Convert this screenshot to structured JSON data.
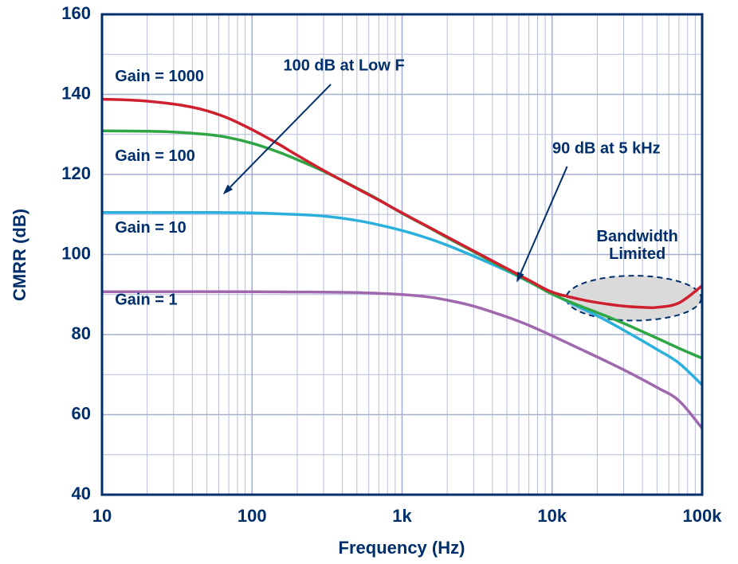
{
  "colors": {
    "navy": "#002f6c",
    "grid_minor": "#b6bdd8",
    "grid_major": "#a7afd0",
    "border": "#002f6c",
    "background": "#ffffff",
    "ellipse_fill": "#dadada",
    "red": "#cf202f",
    "green": "#2fa644",
    "cyan": "#2bb0dd",
    "purple": "#9f68ae"
  },
  "chart_data": {
    "type": "line",
    "title": "",
    "xlabel": "Frequency (Hz)",
    "ylabel": "CMRR (dB)",
    "x_scale": "log",
    "xlim": [
      10,
      100000
    ],
    "ylim": [
      40,
      160
    ],
    "grid": true,
    "x_ticks": [
      {
        "f": 10,
        "label": "10"
      },
      {
        "f": 100,
        "label": "100"
      },
      {
        "f": 1000,
        "label": "1k"
      },
      {
        "f": 10000,
        "label": "10k"
      },
      {
        "f": 100000,
        "label": "100k"
      }
    ],
    "y_ticks": [
      {
        "db": 160,
        "label": "160"
      },
      {
        "db": 140,
        "label": "140"
      },
      {
        "db": 120,
        "label": "120"
      },
      {
        "db": 100,
        "label": "100"
      },
      {
        "db": 80,
        "label": "80"
      },
      {
        "db": 60,
        "label": "60"
      },
      {
        "db": 40,
        "label": "40"
      }
    ],
    "y_grid_step_db": 10,
    "x_minor_multiples": [
      2,
      3,
      4,
      5,
      6,
      7,
      8,
      9
    ],
    "series": [
      {
        "name": "Gain = 1",
        "color_key": "purple",
        "points": [
          [
            10,
            90.7
          ],
          [
            100,
            90.7
          ],
          [
            300,
            90.6
          ],
          [
            500,
            90.5
          ],
          [
            700,
            90.3
          ],
          [
            1000,
            90.0
          ],
          [
            1500,
            89.4
          ],
          [
            2000,
            88.6
          ],
          [
            3000,
            87.1
          ],
          [
            5000,
            84.4
          ],
          [
            7000,
            82.3
          ],
          [
            10000,
            79.7
          ],
          [
            15000,
            76.6
          ],
          [
            20000,
            74.4
          ],
          [
            30000,
            71.2
          ],
          [
            50000,
            66.8
          ],
          [
            70000,
            63.5
          ],
          [
            100000,
            56.6
          ]
        ]
      },
      {
        "name": "Gain = 10",
        "color_key": "cyan",
        "points": [
          [
            10,
            110.5
          ],
          [
            50,
            110.5
          ],
          [
            100,
            110.4
          ],
          [
            200,
            110.0
          ],
          [
            300,
            109.6
          ],
          [
            500,
            108.5
          ],
          [
            700,
            107.4
          ],
          [
            1000,
            106.0
          ],
          [
            1500,
            104.0
          ],
          [
            2000,
            102.3
          ],
          [
            3000,
            99.6
          ],
          [
            5000,
            95.9
          ],
          [
            7000,
            93.2
          ],
          [
            10000,
            90.2
          ],
          [
            15000,
            86.9
          ],
          [
            20000,
            84.7
          ],
          [
            30000,
            81.1
          ],
          [
            50000,
            76.3
          ],
          [
            70000,
            72.9
          ],
          [
            100000,
            67.4
          ]
        ]
      },
      {
        "name": "Gain = 100",
        "color_key": "green",
        "points": [
          [
            10,
            130.9
          ],
          [
            20,
            130.8
          ],
          [
            30,
            130.6
          ],
          [
            50,
            130.0
          ],
          [
            70,
            129.2
          ],
          [
            100,
            127.8
          ],
          [
            150,
            125.6
          ],
          [
            200,
            123.7
          ],
          [
            300,
            120.8
          ],
          [
            500,
            116.6
          ],
          [
            700,
            113.7
          ],
          [
            1000,
            110.3
          ],
          [
            1500,
            106.8
          ],
          [
            2000,
            104.2
          ],
          [
            3000,
            100.7
          ],
          [
            5000,
            96.2
          ],
          [
            7000,
            93.3
          ],
          [
            10000,
            90.1
          ],
          [
            15000,
            87.3
          ],
          [
            20000,
            85.5
          ],
          [
            30000,
            82.8
          ],
          [
            50000,
            79.1
          ],
          [
            70000,
            76.6
          ],
          [
            100000,
            74.1
          ]
        ]
      },
      {
        "name": "Gain = 1000",
        "color_key": "red",
        "points": [
          [
            10,
            138.8
          ],
          [
            15,
            138.6
          ],
          [
            20,
            138.3
          ],
          [
            30,
            137.6
          ],
          [
            40,
            136.8
          ],
          [
            50,
            135.9
          ],
          [
            70,
            134.0
          ],
          [
            100,
            131.2
          ],
          [
            150,
            127.6
          ],
          [
            200,
            124.8
          ],
          [
            300,
            121.0
          ],
          [
            500,
            116.5
          ],
          [
            700,
            113.6
          ],
          [
            1000,
            110.4
          ],
          [
            1500,
            106.9
          ],
          [
            2000,
            104.4
          ],
          [
            3000,
            100.9
          ],
          [
            5000,
            96.5
          ],
          [
            7000,
            93.6
          ],
          [
            10000,
            90.6
          ],
          [
            15000,
            88.9
          ],
          [
            20000,
            88.0
          ],
          [
            30000,
            87.1
          ],
          [
            40000,
            86.8
          ],
          [
            50000,
            86.8
          ],
          [
            70000,
            87.9
          ],
          [
            100000,
            92.2
          ]
        ]
      }
    ],
    "gain_labels": [
      {
        "text": "Gain = 1000",
        "f": 12.2,
        "db": 144.3
      },
      {
        "text": "Gain = 100",
        "f": 12.2,
        "db": 124.4
      },
      {
        "text": "Gain = 10",
        "f": 12.2,
        "db": 106.5
      },
      {
        "text": "Gain = 1",
        "f": 12.2,
        "db": 88.5
      }
    ],
    "annotations": [
      {
        "text": "100 dB at Low F",
        "f": 410,
        "db": 147.0,
        "arrow": {
          "from": [
            335,
            142.5
          ],
          "to": [
            64,
            115.0
          ]
        }
      },
      {
        "text": "90 dB at 5 kHz",
        "f": 23000,
        "db": 126.3,
        "arrow": {
          "from": [
            12600,
            122.0
          ],
          "to": [
            5800,
            93.0
          ]
        }
      },
      {
        "lines": [
          "Bandwidth",
          "Limited"
        ],
        "f": 37000,
        "db": 104.3
      }
    ],
    "bandwidth_ellipse": {
      "f": 35000,
      "db": 89.1,
      "rx_decades": 0.45,
      "ry_db": 5.6
    }
  }
}
